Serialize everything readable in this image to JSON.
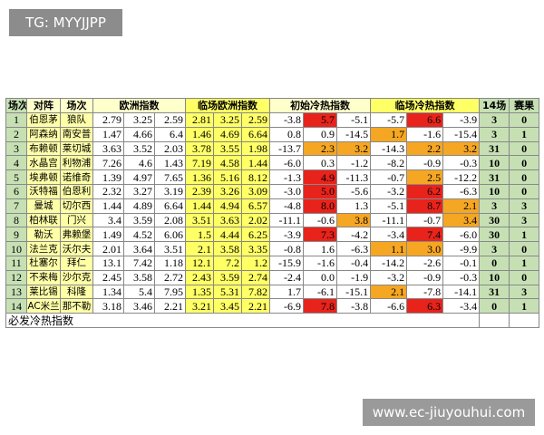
{
  "watermark_top": "TG: MYYJJPP",
  "watermark_bottom": "www.ec-jiuyouhui.com",
  "colors": {
    "red": "#e8231c",
    "orange": "#f5a623"
  },
  "table": {
    "header": [
      "场次",
      "对阵",
      "场次",
      "欧洲指数",
      "临场欧洲指数",
      "初始冷热指数",
      "临场冷热指数",
      "14场",
      "赛果"
    ],
    "rows": [
      {
        "no": 1,
        "home": "伯恩茅",
        "away": "狼队",
        "euro": [
          2.79,
          3.25,
          2.59
        ],
        "live_euro": [
          2.81,
          3.25,
          2.59
        ],
        "init_heat": [
          -3.8,
          5.7,
          -5.1
        ],
        "init_colors": [
          null,
          "red",
          null
        ],
        "live_heat": [
          -5.7,
          6.6,
          -3.9
        ],
        "live_colors": [
          null,
          "red",
          null
        ],
        "fourteen": 3,
        "result": 0
      },
      {
        "no": 2,
        "home": "阿森纳",
        "away": "南安普",
        "euro": [
          1.47,
          4.66,
          6.4
        ],
        "live_euro": [
          1.46,
          4.69,
          6.64
        ],
        "init_heat": [
          0.8,
          0.9,
          -14.5
        ],
        "init_colors": [
          null,
          null,
          null
        ],
        "live_heat": [
          1.7,
          -1.6,
          -15.4
        ],
        "live_colors": [
          "orange",
          null,
          null
        ],
        "fourteen": 3,
        "result": 1
      },
      {
        "no": 3,
        "home": "布赖顿",
        "away": "莱切城",
        "euro": [
          3.63,
          3.52,
          2.03
        ],
        "live_euro": [
          3.78,
          3.55,
          1.98
        ],
        "init_heat": [
          -13.7,
          2.3,
          3.2
        ],
        "init_colors": [
          null,
          "orange",
          "orange"
        ],
        "live_heat": [
          -14.3,
          2.2,
          3.2
        ],
        "live_colors": [
          null,
          "orange",
          "orange"
        ],
        "fourteen": 31,
        "result": 0
      },
      {
        "no": 4,
        "home": "水晶宫",
        "away": "利物浦",
        "euro": [
          7.26,
          4.6,
          1.43
        ],
        "live_euro": [
          7.19,
          4.58,
          1.44
        ],
        "init_heat": [
          "-6.0",
          0.3,
          -1.2
        ],
        "init_colors": [
          null,
          null,
          null
        ],
        "live_heat": [
          -8.2,
          -0.9,
          -0.3
        ],
        "live_colors": [
          null,
          null,
          null
        ],
        "fourteen": 10,
        "result": 0
      },
      {
        "no": 5,
        "home": "埃弗顿",
        "away": "诺维奇",
        "euro": [
          1.39,
          4.97,
          7.65
        ],
        "live_euro": [
          1.36,
          5.16,
          8.12
        ],
        "init_heat": [
          -1.3,
          4.9,
          -11.3
        ],
        "init_colors": [
          null,
          "red",
          null
        ],
        "live_heat": [
          -0.7,
          2.5,
          -12.2
        ],
        "live_colors": [
          null,
          "orange",
          null
        ],
        "fourteen": 31,
        "result": 0
      },
      {
        "no": 6,
        "home": "沃特福",
        "away": "伯恩利",
        "euro": [
          2.32,
          3.27,
          3.19
        ],
        "live_euro": [
          2.39,
          3.26,
          3.09
        ],
        "init_heat": [
          "-3.0",
          "5.0",
          -5.6
        ],
        "init_colors": [
          null,
          "red",
          null
        ],
        "live_heat": [
          -3.2,
          6.2,
          -6.3
        ],
        "live_colors": [
          null,
          "red",
          null
        ],
        "fourteen": 10,
        "result": 0
      },
      {
        "no": 7,
        "home": "曼城",
        "away": "切尔西",
        "euro": [
          1.44,
          4.89,
          6.64
        ],
        "live_euro": [
          1.44,
          4.94,
          6.57
        ],
        "init_heat": [
          -4.8,
          "8.0",
          1.3
        ],
        "init_colors": [
          null,
          "red",
          null
        ],
        "live_heat": [
          -5.1,
          8.7,
          2.1
        ],
        "live_colors": [
          null,
          "red",
          "orange"
        ],
        "fourteen": 3,
        "result": 3
      },
      {
        "no": 8,
        "home": "柏林联",
        "away": "门兴",
        "euro": [
          3.4,
          3.59,
          2.08
        ],
        "live_euro": [
          3.51,
          3.63,
          2.02
        ],
        "init_heat": [
          -11.1,
          -0.6,
          3.8
        ],
        "init_colors": [
          null,
          null,
          "orange"
        ],
        "live_heat": [
          -11.1,
          -0.7,
          3.4
        ],
        "live_colors": [
          null,
          null,
          "orange"
        ],
        "fourteen": 30,
        "result": 3
      },
      {
        "no": 9,
        "home": "勒沃",
        "away": "弗赖堡",
        "euro": [
          1.49,
          4.52,
          6.06
        ],
        "live_euro": [
          1.5,
          4.44,
          6.25
        ],
        "init_heat": [
          -3.9,
          7.3,
          -4.2
        ],
        "init_colors": [
          null,
          "red",
          null
        ],
        "live_heat": [
          -3.4,
          7.4,
          "-6.0"
        ],
        "live_colors": [
          null,
          "red",
          null
        ],
        "fourteen": 30,
        "result": 1
      },
      {
        "no": 10,
        "home": "法兰克",
        "away": "沃尔夫",
        "euro": [
          2.01,
          3.64,
          3.51
        ],
        "live_euro": [
          2.1,
          3.58,
          3.35
        ],
        "init_heat": [
          -0.8,
          1.6,
          -6.3
        ],
        "init_colors": [
          null,
          null,
          null
        ],
        "live_heat": [
          1.1,
          "3.0",
          -9.9
        ],
        "live_colors": [
          "orange",
          "orange",
          null
        ],
        "fourteen": 3,
        "result": 0
      },
      {
        "no": 11,
        "home": "杜塞尔",
        "away": "拜仁",
        "euro": [
          13.1,
          7.42,
          1.18
        ],
        "live_euro": [
          12.1,
          7.2,
          1.2
        ],
        "init_heat": [
          -15.9,
          -1.6,
          -0.4
        ],
        "init_colors": [
          null,
          null,
          null
        ],
        "live_heat": [
          -14.2,
          -2.6,
          -0.1
        ],
        "live_colors": [
          null,
          null,
          null
        ],
        "fourteen": 0,
        "result": 1
      },
      {
        "no": 12,
        "home": "不来梅",
        "away": "沙尔克",
        "euro": [
          2.45,
          3.58,
          2.72
        ],
        "live_euro": [
          2.43,
          3.59,
          2.74
        ],
        "init_heat": [
          -2.4,
          "0.0",
          -1.9
        ],
        "init_colors": [
          null,
          null,
          null
        ],
        "live_heat": [
          -3.2,
          -0.9,
          -0.3
        ],
        "live_colors": [
          null,
          null,
          null
        ],
        "fourteen": 10,
        "result": 0
      },
      {
        "no": 13,
        "home": "莱比锡",
        "away": "科隆",
        "euro": [
          1.34,
          5.4,
          7.95
        ],
        "live_euro": [
          1.35,
          5.31,
          7.82
        ],
        "init_heat": [
          1.7,
          -6.1,
          -15.1
        ],
        "init_colors": [
          null,
          null,
          null
        ],
        "live_heat": [
          2.1,
          -7.8,
          -14.1
        ],
        "live_colors": [
          "orange",
          null,
          null
        ],
        "fourteen": 31,
        "result": 3
      },
      {
        "no": 14,
        "home": "AC米兰",
        "away": "那不勒",
        "euro": [
          3.18,
          3.46,
          2.21
        ],
        "live_euro": [
          3.21,
          3.45,
          2.21
        ],
        "init_heat": [
          -6.9,
          7.8,
          -3.8
        ],
        "init_colors": [
          null,
          "red",
          null
        ],
        "live_heat": [
          -6.6,
          6.3,
          -3.4
        ],
        "live_colors": [
          null,
          "red",
          null
        ],
        "fourteen": 0,
        "result": 1
      }
    ],
    "footer": "必发冷热指数"
  }
}
